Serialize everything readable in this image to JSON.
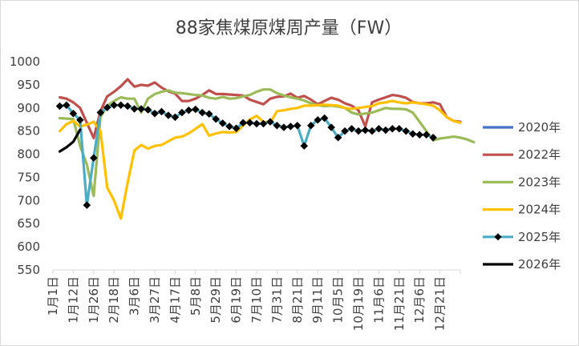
{
  "chart_data": {
    "type": "line",
    "title": "88家焦煤原煤周产量（FW）",
    "xlabel": "",
    "ylabel": "",
    "ylim": [
      550,
      1000
    ],
    "yticks": [
      550,
      600,
      650,
      700,
      750,
      800,
      850,
      900,
      950,
      1000
    ],
    "grid": false,
    "legend_position": "right",
    "x_tick_labels": [
      "1月1日",
      "1月12日",
      "1月26日",
      "2月18日",
      "3月6日",
      "3月27日",
      "4月17日",
      "5月8日",
      "5月29日",
      "6月19日",
      "7月10日",
      "7月31日",
      "8月21日",
      "9月11日",
      "10月5日",
      "10月19日",
      "11月6日",
      "11月21日",
      "12月6日",
      "12月21日"
    ],
    "x_tick_positions": [
      0,
      3,
      6,
      9,
      12,
      15,
      18,
      21,
      24,
      27,
      30,
      33,
      36,
      39,
      42,
      45,
      48,
      51,
      54,
      57
    ],
    "series": [
      {
        "name": "2020年",
        "color": "#4472C4",
        "marker": "none",
        "values": []
      },
      {
        "name": "2022年",
        "color": "#C0504D",
        "marker": "none",
        "values": [
          null,
          923,
          920,
          912,
          900,
          868,
          835,
          893,
          925,
          935,
          947,
          962,
          946,
          950,
          948,
          955,
          944,
          936,
          931,
          915,
          915,
          920,
          928,
          938,
          930,
          930,
          929,
          928,
          927,
          918,
          913,
          908,
          920,
          924,
          925,
          931,
          922,
          926,
          918,
          908,
          915,
          922,
          918,
          910,
          905,
          895,
          860,
          912,
          918,
          923,
          928,
          926,
          922,
          913,
          910,
          910,
          912,
          908,
          880,
          872,
          870
        ]
      },
      {
        "name": "2023年",
        "color": "#9BBB59",
        "marker": "none",
        "values": [
          null,
          878,
          877,
          876,
          818,
          778,
          710,
          880,
          905,
          915,
          923,
          920,
          920,
          890,
          920,
          930,
          935,
          938,
          933,
          932,
          930,
          928,
          927,
          922,
          920,
          924,
          920,
          921,
          925,
          928,
          935,
          940,
          940,
          932,
          927,
          923,
          920,
          916,
          910,
          906,
          904,
          905,
          903,
          900,
          890,
          886,
          888,
          890,
          895,
          900,
          898,
          898,
          897,
          890,
          870,
          850,
          830,
          834,
          836,
          838,
          836,
          832,
          826
        ]
      },
      {
        "name": "2024年",
        "color": "#FFC000",
        "marker": "none",
        "values": [
          null,
          850,
          865,
          872,
          860,
          864,
          870,
          850,
          728,
          700,
          661,
          738,
          808,
          820,
          812,
          818,
          820,
          828,
          836,
          838,
          845,
          855,
          865,
          840,
          845,
          848,
          847,
          848,
          862,
          875,
          883,
          870,
          868,
          893,
          895,
          898,
          900,
          905,
          905,
          906,
          907,
          906,
          905,
          900,
          898,
          900,
          902,
          904,
          910,
          912,
          915,
          912,
          910,
          912,
          910,
          908,
          905,
          895,
          880,
          872,
          868
        ]
      },
      {
        "name": "2025年",
        "color": "#4BACC6",
        "marker": "diamond",
        "values": [
          null,
          904,
          906,
          888,
          874,
          690,
          792,
          890,
          901,
          906,
          906,
          904,
          898,
          898,
          896,
          888,
          892,
          884,
          880,
          890,
          895,
          897,
          890,
          887,
          876,
          867,
          860,
          856,
          868,
          868,
          866,
          866,
          870,
          862,
          858,
          860,
          862,
          818,
          862,
          874,
          878,
          858,
          836,
          850,
          855,
          850,
          852,
          850,
          855,
          852,
          855,
          855,
          850,
          844,
          842,
          842,
          836
        ]
      },
      {
        "name": "2026年",
        "color": "#000000",
        "marker": "none",
        "values": [
          null,
          806,
          815,
          827,
          853
        ]
      }
    ]
  }
}
